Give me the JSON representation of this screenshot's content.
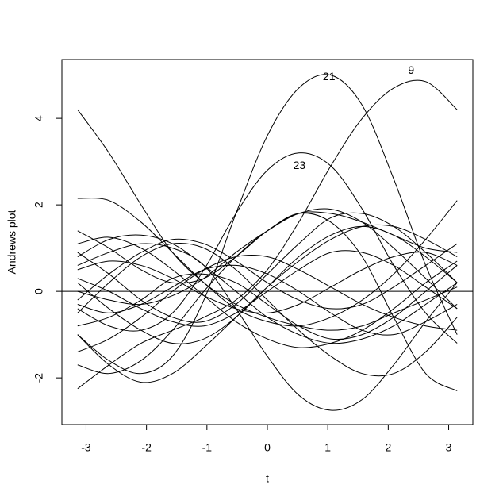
{
  "chart_data": {
    "type": "line",
    "x_label": "t",
    "y_label": "Andrews plot",
    "x": [
      -3.14,
      -2.62,
      -2.09,
      -1.57,
      -1.05,
      -0.52,
      0,
      0.52,
      1.05,
      1.57,
      2.09,
      2.62,
      3.14
    ],
    "xlim": [
      -3.4,
      3.4
    ],
    "xticks": [
      -3,
      -2,
      -1,
      0,
      1,
      2,
      3
    ],
    "ylim": [
      -3.08,
      5.36
    ],
    "yticks": [
      -2,
      0,
      2,
      4
    ],
    "hline": 0,
    "color": "#000000",
    "series": [
      {
        "name": "21",
        "values": [
          -1.0,
          -1.6,
          -1.9,
          -1.5,
          -0.2,
          1.8,
          3.6,
          4.7,
          5.0,
          4.3,
          2.6,
          0.6,
          -1.0
        ]
      },
      {
        "name": "9",
        "values": [
          -2.25,
          -1.7,
          -1.2,
          -0.9,
          -0.6,
          -0.2,
          0.5,
          1.6,
          2.9,
          4.0,
          4.7,
          4.85,
          4.2
        ]
      },
      {
        "name": "23",
        "values": [
          -0.4,
          -0.8,
          -0.9,
          -0.5,
          0.5,
          1.8,
          2.8,
          3.2,
          2.9,
          1.9,
          0.6,
          -0.5,
          -1.2
        ]
      },
      {
        "values": [
          4.2,
          3.2,
          2.0,
          0.9,
          0.2,
          -0.3,
          -0.6,
          -0.8,
          -0.9,
          -0.8,
          -0.5,
          -0.2,
          0.1
        ]
      },
      {
        "values": [
          2.15,
          2.1,
          1.6,
          0.9,
          0.2,
          -0.4,
          -0.7,
          -0.8,
          -0.6,
          -0.2,
          0.4,
          1.2,
          2.1
        ]
      },
      {
        "values": [
          0.6,
          0.9,
          1.1,
          1.0,
          0.6,
          -0.4,
          -1.5,
          -2.4,
          -2.75,
          -2.5,
          -1.7,
          -0.7,
          0.2
        ]
      },
      {
        "values": [
          1.4,
          1.0,
          0.5,
          0.2,
          0.3,
          0.8,
          1.4,
          1.8,
          1.6,
          0.8,
          -0.6,
          -1.9,
          -2.3
        ]
      },
      {
        "values": [
          -1.0,
          -1.7,
          -2.1,
          -1.9,
          -1.3,
          -0.6,
          0.1,
          0.7,
          1.2,
          1.5,
          1.5,
          1.2,
          0.8
        ]
      },
      {
        "values": [
          -1.7,
          -1.9,
          -1.6,
          -0.9,
          0.0,
          0.8,
          1.4,
          1.8,
          1.8,
          1.6,
          1.3,
          1.0,
          0.9
        ]
      },
      {
        "values": [
          1.1,
          1.25,
          1.0,
          0.5,
          -0.1,
          -0.7,
          -1.1,
          -1.3,
          -1.2,
          -0.9,
          -0.4,
          0.2,
          0.7
        ]
      },
      {
        "values": [
          -0.5,
          0.2,
          0.8,
          1.1,
          1.0,
          0.5,
          -0.2,
          -0.9,
          -1.5,
          -1.9,
          -1.9,
          -1.4,
          -0.6
        ]
      },
      {
        "values": [
          0.2,
          -0.4,
          -0.9,
          -1.2,
          -1.1,
          -0.6,
          0.1,
          0.8,
          1.3,
          1.5,
          1.3,
          0.8,
          0.2
        ]
      },
      {
        "values": [
          -0.3,
          -0.5,
          -0.3,
          0.1,
          0.5,
          0.6,
          0.4,
          0.0,
          -0.5,
          -0.9,
          -1.0,
          -0.7,
          -0.3
        ]
      },
      {
        "values": [
          0.5,
          0.7,
          0.6,
          0.3,
          -0.1,
          -0.4,
          -0.5,
          -0.3,
          0.1,
          0.5,
          0.8,
          0.9,
          0.6
        ]
      },
      {
        "values": [
          0.8,
          1.2,
          1.3,
          1.1,
          0.6,
          0.0,
          -0.6,
          -1.0,
          -1.2,
          -1.1,
          -0.8,
          -0.3,
          0.2
        ]
      },
      {
        "values": [
          -1.4,
          -1.1,
          -0.6,
          0.0,
          0.5,
          0.8,
          0.8,
          0.5,
          0.1,
          -0.3,
          -0.6,
          -0.8,
          -0.9
        ]
      },
      {
        "values": [
          0.0,
          -0.2,
          -0.3,
          -0.1,
          0.3,
          0.9,
          1.4,
          1.8,
          1.9,
          1.6,
          1.0,
          0.3,
          -0.4
        ]
      },
      {
        "values": [
          -0.8,
          -0.6,
          -0.2,
          0.3,
          0.4,
          0.2,
          -0.3,
          -0.8,
          -1.1,
          -1.0,
          -0.6,
          0.0,
          0.6
        ]
      },
      {
        "values": [
          0.3,
          0.0,
          -0.4,
          -0.7,
          -0.8,
          -0.5,
          0.0,
          0.5,
          0.9,
          0.9,
          0.6,
          0.1,
          -0.4
        ]
      },
      {
        "values": [
          -0.2,
          0.4,
          0.9,
          1.2,
          1.1,
          0.7,
          0.2,
          -0.2,
          -0.4,
          -0.3,
          0.1,
          0.6,
          1.1
        ]
      },
      {
        "values": [
          0.9,
          0.4,
          -0.2,
          -0.6,
          -0.7,
          -0.3,
          0.4,
          1.1,
          1.7,
          1.8,
          1.5,
          0.9,
          0.2
        ]
      }
    ],
    "annotations": [
      {
        "text": "21",
        "x": 1.02,
        "y": 4.95
      },
      {
        "text": "9",
        "x": 2.38,
        "y": 5.1
      },
      {
        "text": "23",
        "x": 0.53,
        "y": 2.9
      }
    ]
  }
}
